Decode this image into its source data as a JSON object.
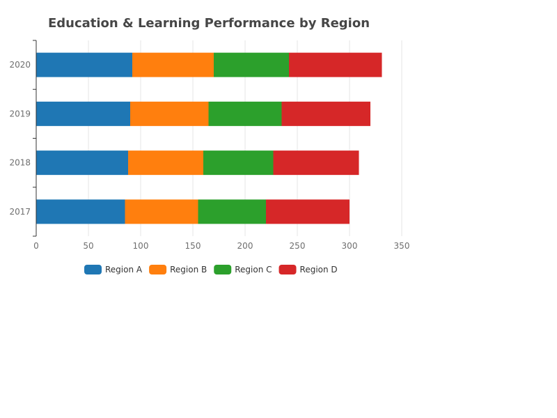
{
  "chart_data": {
    "type": "bar",
    "orientation": "horizontal",
    "stacked": true,
    "title": "Education & Learning Performance by Region",
    "categories": [
      "2017",
      "2018",
      "2019",
      "2020"
    ],
    "series": [
      {
        "name": "Region A",
        "color": "#1f77b4",
        "values": [
          85,
          88,
          90,
          92
        ]
      },
      {
        "name": "Region B",
        "color": "#ff7f0e",
        "values": [
          70,
          72,
          75,
          78
        ]
      },
      {
        "name": "Region C",
        "color": "#2ca02c",
        "values": [
          65,
          67,
          70,
          72
        ]
      },
      {
        "name": "Region D",
        "color": "#d62728",
        "values": [
          80,
          82,
          85,
          89
        ]
      }
    ],
    "xlim": [
      0,
      350
    ],
    "xticks": [
      "0",
      "50",
      "100",
      "150",
      "200",
      "250",
      "300",
      "350"
    ],
    "grid": "vertical",
    "legend_position": "bottom"
  }
}
